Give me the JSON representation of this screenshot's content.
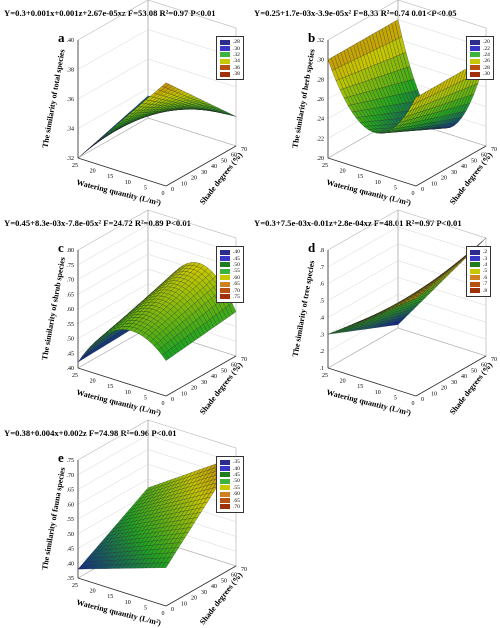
{
  "chart_data": [
    {
      "type": "surface",
      "letter": "a",
      "equation": "Y=0.3+0.001x+0.001z+2.67e-05xz  F=53.08  R²=0.97  P<0.01",
      "zlabel": "The similarity of total species",
      "xlabel": "Watering quantity (L/m²)",
      "ylabel": "Shade degrees (%)",
      "zticks": [
        ".32",
        ".34",
        ".36",
        ".38",
        ".40"
      ],
      "xticks": [
        "25",
        "20",
        "15",
        "10",
        "5",
        "0"
      ],
      "yticks": [
        "0",
        "10",
        "20",
        "30",
        "40",
        "50",
        "60",
        "70"
      ],
      "legend": [
        ".28",
        ".30",
        ".32",
        ".34",
        ".36",
        ".38"
      ],
      "corners": {
        "x0y0": 0.32,
        "x1y0": 0.39,
        "x0y1": 0.335,
        "x1y1": 0.34
      },
      "bulge": 0.0
    },
    {
      "type": "surface",
      "letter": "b",
      "equation": "Y=0.25+1.7e-03x-3.9e-05x²  F=8.33  R²=0.74  0.01<P<0.05",
      "zlabel": "The similarity of herb species",
      "xlabel": "Watering quantity (L/m²)",
      "ylabel": "Shade degrees (%)",
      "zticks": [
        ".20",
        ".22",
        ".24",
        ".26",
        ".28",
        ".30",
        ".32"
      ],
      "xticks": [
        "25",
        "20",
        "15",
        "10",
        "5",
        "0"
      ],
      "yticks": [
        "0",
        "10",
        "20",
        "30",
        "40",
        "50",
        "60",
        "70"
      ],
      "legend": [
        ".20",
        ".22",
        ".24",
        ".26",
        ".28",
        ".30"
      ],
      "corners": {
        "x0y0": 0.3,
        "x1y0": 0.29,
        "x0y1": 0.3,
        "x1y1": 0.29
      },
      "bulge": -0.09
    },
    {
      "type": "surface",
      "letter": "c",
      "equation": "Y=0.45+8.3e-03x-7.8e-05x²  F=24.72  R²=0.89  P<0.01",
      "zlabel": "The similarity of shrub species",
      "xlabel": "Watering quantity (L/m²)",
      "ylabel": "Shade degrees (%)",
      "zticks": [
        ".40",
        ".45",
        ".50",
        ".55",
        ".60",
        ".65",
        ".70",
        ".75",
        ".80"
      ],
      "xticks": [
        "25",
        "20",
        "15",
        "10",
        "5",
        "0"
      ],
      "yticks": [
        "0",
        "10",
        "20",
        "30",
        "40",
        "50",
        "60",
        "70"
      ],
      "legend": [
        ".40",
        ".45",
        ".50",
        ".55",
        ".60",
        ".65",
        ".70",
        ".75"
      ],
      "corners": {
        "x0y0": 0.42,
        "x1y0": 0.52,
        "x0y1": 0.43,
        "x1y1": 0.55
      },
      "bulge": 0.18
    },
    {
      "type": "surface",
      "letter": "d",
      "equation": "Y=0.3+7.5e-03x-0.01z+2.8e-04xz  F=48.01  R²=0.97  P<0.01",
      "zlabel": "The similarity of tree species",
      "xlabel": "Watering quantity (L/m²)",
      "ylabel": "Shade degrees (%)",
      "zticks": [
        ".1",
        ".2",
        ".3",
        ".4",
        ".5",
        ".6",
        ".7",
        ".8"
      ],
      "xticks": [
        "25",
        "20",
        "15",
        "10",
        "5",
        "0"
      ],
      "yticks": [
        "0",
        "10",
        "20",
        "30",
        "40",
        "50",
        "60",
        "70"
      ],
      "legend": [
        ".2",
        ".3",
        ".4",
        ".5",
        ".6",
        ".7",
        ".8"
      ],
      "corners": {
        "x0y0": 0.3,
        "x1y0": 0.68,
        "x0y1": 0.12,
        "x1y1": 0.8
      },
      "bulge": 0.0
    },
    {
      "type": "surface",
      "letter": "e",
      "equation": "Y=0.38+0.004x+0.002z  F=74.98  R²=0.96  P<0.01",
      "zlabel": "The similarity of fauna species",
      "xlabel": "Watering quantity (L/m²)",
      "ylabel": "Shade degrees (%)",
      "zticks": [
        ".35",
        ".40",
        ".45",
        ".50",
        ".55",
        ".60",
        ".65",
        ".70",
        ".75"
      ],
      "xticks": [
        "25",
        "20",
        "15",
        "10",
        "5",
        "0"
      ],
      "yticks": [
        "0",
        "10",
        "20",
        "30",
        "40",
        "50",
        "60",
        "70"
      ],
      "legend": [
        ".35",
        ".40",
        ".45",
        ".50",
        ".55",
        ".60",
        ".65",
        ".70"
      ],
      "corners": {
        "x0y0": 0.38,
        "x1y0": 0.48,
        "x0y1": 0.52,
        "x1y1": 0.72
      },
      "bulge": 0.0
    }
  ],
  "colors": {
    "blue": "#0a0aa8",
    "green": "#1fa41f",
    "yellow": "#c8c800",
    "orange": "#c06010",
    "legend": [
      "#2c2c8c",
      "#3838c8",
      "#1e7c1e",
      "#3cb43c",
      "#c8c800",
      "#d08020",
      "#b85010",
      "#a03008"
    ]
  }
}
